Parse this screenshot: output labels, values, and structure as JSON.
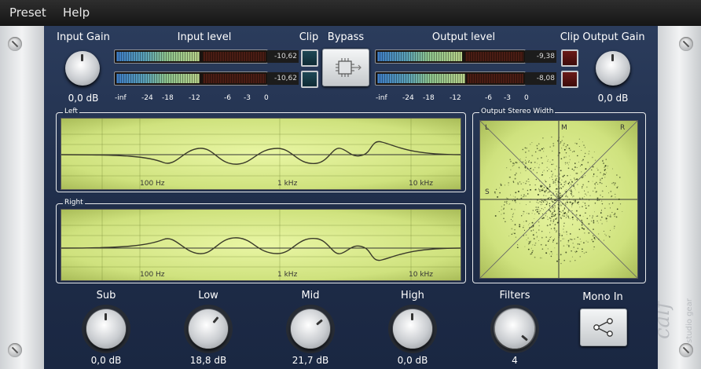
{
  "menu": {
    "preset": "Preset",
    "help": "Help"
  },
  "input_gain": {
    "label": "Input Gain",
    "value": "0,0 dB"
  },
  "output_gain": {
    "label": "Output Gain",
    "value": "0,0 dB"
  },
  "input_level": {
    "label": "Input level",
    "left_value": "-10,62",
    "right_value": "-10,62",
    "left_fill": 0.56,
    "right_fill": 0.56
  },
  "output_level": {
    "label": "Output level",
    "left_value": "-9,38",
    "right_value": "-8,08",
    "left_fill": 0.58,
    "right_fill": 0.6
  },
  "clip_label": "Clip",
  "bypass_label": "Bypass",
  "meter_scale": [
    "-inf",
    "-24",
    "-18",
    "-12",
    "-6",
    "-3",
    "0"
  ],
  "left_graph": {
    "title": "Left",
    "ticks": [
      "100 Hz",
      "1 kHz",
      "10 kHz"
    ]
  },
  "right_graph": {
    "title": "Right",
    "ticks": [
      "100 Hz",
      "1 kHz",
      "10 kHz"
    ]
  },
  "stereo_width": {
    "title": "Output Stereo Width",
    "l": "L",
    "m": "M",
    "r": "R",
    "s": "S"
  },
  "bands": [
    {
      "label": "Sub",
      "value": "0,0 dB"
    },
    {
      "label": "Low",
      "value": "18,8 dB"
    },
    {
      "label": "Mid",
      "value": "21,7 dB"
    },
    {
      "label": "High",
      "value": "0,0 dB"
    }
  ],
  "filters": {
    "label": "Filters",
    "value": "4"
  },
  "mono_in": {
    "label": "Mono In"
  },
  "brand": {
    "name": "calf",
    "sub": "studio gear"
  },
  "colors": {
    "panel": "#23334f",
    "lcd": "#d9eb8c",
    "clip_red": "#6a1a18",
    "clip_teal": "#1e4755"
  }
}
